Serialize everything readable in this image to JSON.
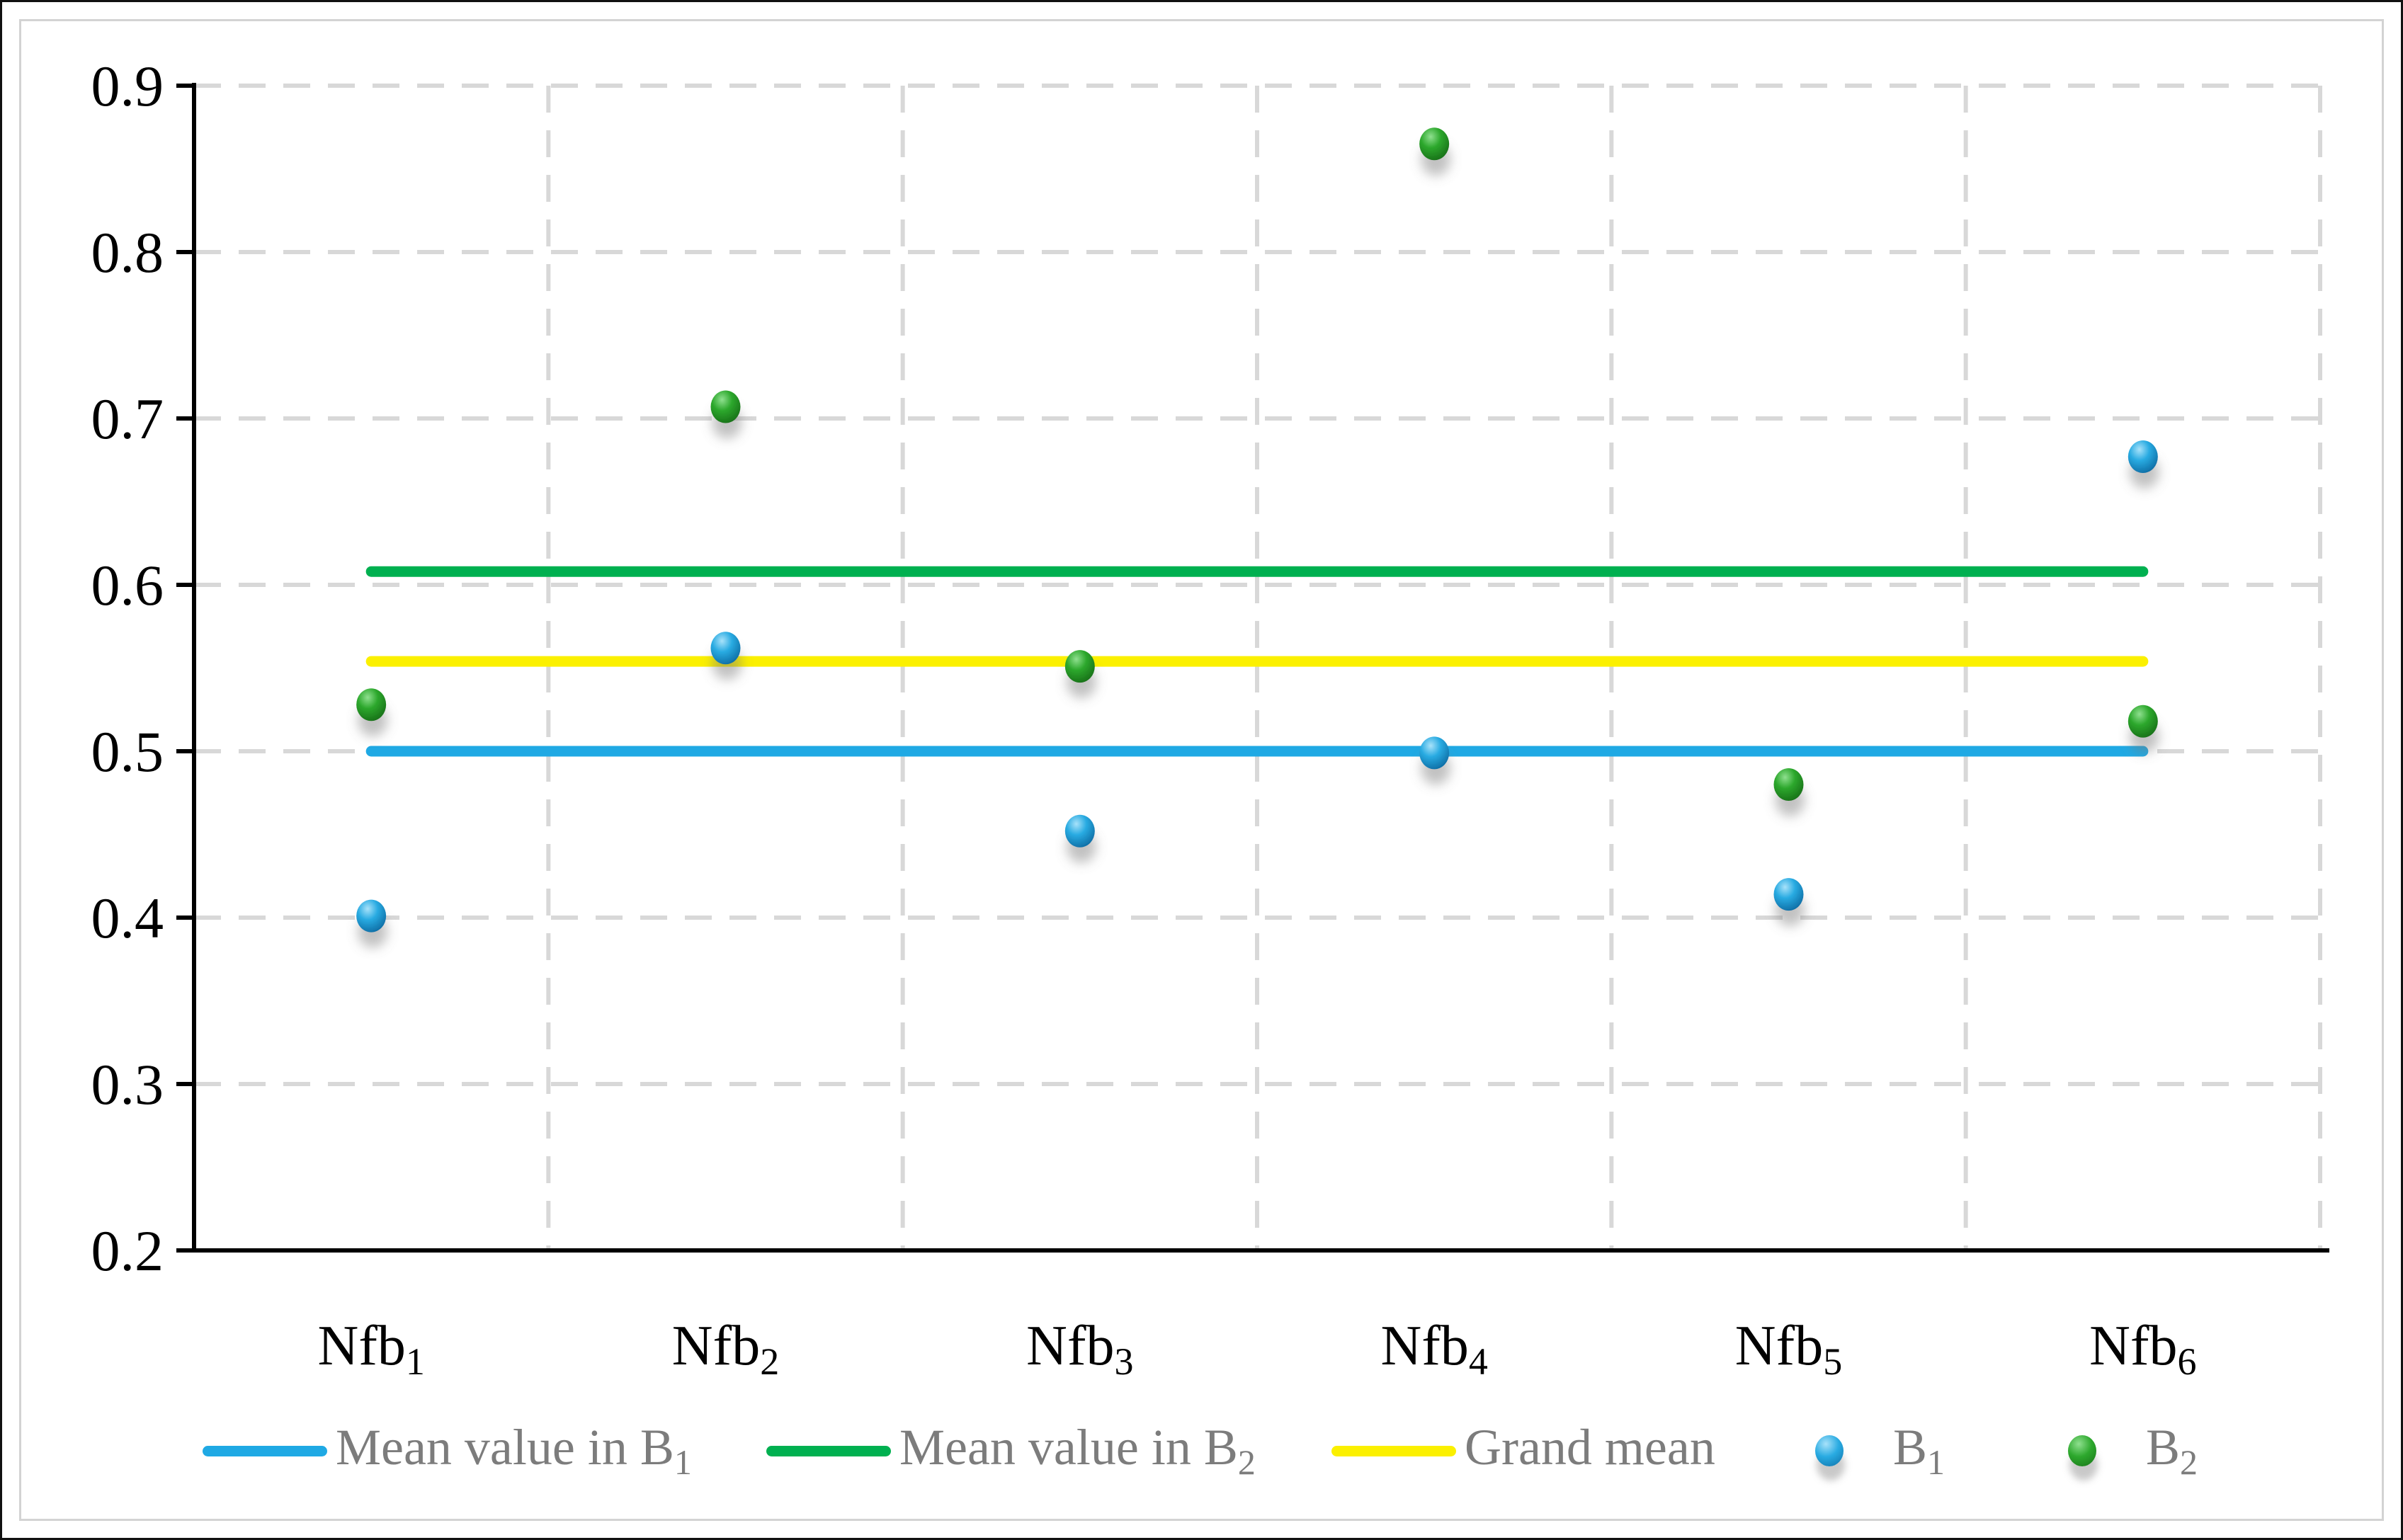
{
  "chart_data": {
    "type": "scatter",
    "title": "",
    "xlabel": "",
    "ylabel": "",
    "grid": true,
    "legend_position": "bottom",
    "y_axis": {
      "min": 0.2,
      "max": 0.9,
      "tick_step": 0.1,
      "ticks": [
        {
          "value": 0.9,
          "label": "0.9"
        },
        {
          "value": 0.8,
          "label": "0.8"
        },
        {
          "value": 0.7,
          "label": "0.7"
        },
        {
          "value": 0.6,
          "label": "0.6"
        },
        {
          "value": 0.5,
          "label": "0.5"
        },
        {
          "value": 0.4,
          "label": "0.4"
        },
        {
          "value": 0.3,
          "label": "0.3"
        },
        {
          "value": 0.2,
          "label": "0.2"
        }
      ]
    },
    "categories": [
      {
        "text": "Nfb",
        "sub": "1"
      },
      {
        "text": "Nfb",
        "sub": "2"
      },
      {
        "text": "Nfb",
        "sub": "3"
      },
      {
        "text": "Nfb",
        "sub": "4"
      },
      {
        "text": "Nfb",
        "sub": "5"
      },
      {
        "text": "Nfb",
        "sub": "6"
      }
    ],
    "series": [
      {
        "name": "B",
        "sub": "1",
        "marker": "blue",
        "values": [
          0.401,
          0.562,
          0.452,
          0.499,
          0.414,
          0.677
        ]
      },
      {
        "name": "B",
        "sub": "2",
        "marker": "green",
        "values": [
          0.528,
          0.707,
          0.551,
          0.865,
          0.48,
          0.518
        ]
      }
    ],
    "mean_lines": [
      {
        "name": "Mean value in B",
        "sub": "1",
        "value": 0.5,
        "color": "#1FA9E4"
      },
      {
        "name": "Mean value in B",
        "sub": "2",
        "value": 0.608,
        "color": "#00B050"
      },
      {
        "name": "Grand mean",
        "sub": "",
        "value": 0.554,
        "color": "#FBF000"
      }
    ]
  },
  "legend": {
    "items": [
      {
        "kind": "line",
        "color": "#1FA9E4",
        "text": "Mean value in B",
        "sub": "1"
      },
      {
        "kind": "line",
        "color": "#00B050",
        "text": "Mean value in B",
        "sub": "2"
      },
      {
        "kind": "line",
        "color": "#FBF000",
        "text": "Grand mean",
        "sub": ""
      },
      {
        "kind": "marker",
        "color": "blue",
        "text": "B",
        "sub": "1"
      },
      {
        "kind": "marker",
        "color": "green",
        "text": "B",
        "sub": "2"
      }
    ]
  },
  "colors": {
    "grid": "#D8D8D8",
    "axis": "#000000",
    "tick_label": "#000000",
    "category_label": "#000000",
    "legend_text": "#7C7C7C",
    "frame": "#D3D3D3",
    "blue_dot_light": "#A8E2FA",
    "blue_dot_mid": "#29ABE2",
    "blue_dot_dark": "#0E6FA6",
    "green_dot_light": "#8FE08F",
    "green_dot_mid": "#2DA82D",
    "green_dot_dark": "#187218"
  }
}
